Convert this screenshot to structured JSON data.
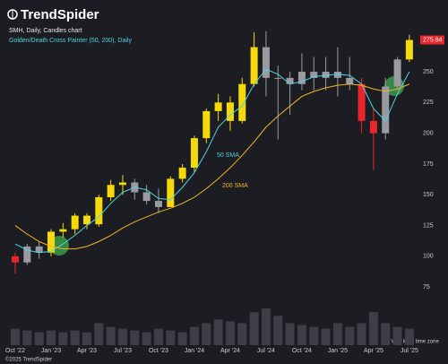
{
  "header": {
    "brand": "TrendSpider"
  },
  "footer": {
    "timezone": "Your local time zone",
    "copyright": "©2025 TrendSpider"
  },
  "chart_data": {
    "type": "candlestick",
    "title": "SMH, Daily, Candles chart",
    "subtitle": "Golden/Death Cross Painter (50, 200), Daily",
    "categories": [
      "Oct '22",
      null,
      null,
      "Jan '23",
      null,
      null,
      "Apr '23",
      null,
      null,
      "Jul '23",
      null,
      null,
      "Oct '23",
      null,
      null,
      "Jan '24",
      null,
      null,
      "Apr '24",
      null,
      null,
      "Jul '24",
      null,
      null,
      "Oct '24",
      null,
      null,
      "Jan '25",
      null,
      null,
      "Apr '25",
      null,
      null,
      "Jul '25"
    ],
    "open": [
      100,
      95,
      108,
      103,
      120,
      122,
      133,
      126,
      148,
      158,
      160,
      152,
      145,
      140,
      163,
      172,
      196,
      218,
      225,
      210,
      240,
      270,
      245,
      245,
      240,
      250,
      245,
      250,
      245,
      240,
      210,
      200,
      238,
      260
    ],
    "high": [
      103,
      110,
      112,
      122,
      127,
      135,
      135,
      150,
      162,
      166,
      163,
      158,
      155,
      165,
      175,
      198,
      220,
      232,
      230,
      245,
      282,
      283,
      255,
      250,
      265,
      262,
      262,
      270,
      262,
      245,
      220,
      245,
      262,
      280
    ],
    "low": [
      86,
      93,
      98,
      100,
      115,
      118,
      122,
      124,
      145,
      150,
      146,
      142,
      135,
      140,
      160,
      168,
      192,
      210,
      202,
      208,
      238,
      230,
      195,
      215,
      235,
      235,
      235,
      230,
      235,
      200,
      170,
      195,
      235,
      258
    ],
    "close": [
      95,
      108,
      103,
      120,
      122,
      133,
      126,
      148,
      158,
      160,
      152,
      145,
      140,
      163,
      172,
      196,
      218,
      225,
      210,
      240,
      270,
      245,
      245,
      240,
      250,
      245,
      250,
      245,
      240,
      210,
      200,
      238,
      260,
      275.84
    ],
    "candle_colors": [
      "#e8262b",
      "#9a9ba0",
      "#9a9ba0",
      "#f5d90a",
      "#f5d90a",
      "#f5d90a",
      "#f5d90a",
      "#f5d90a",
      "#f5d90a",
      "#f5d90a",
      "#9a9ba0",
      "#9a9ba0",
      "#9a9ba0",
      "#f5d90a",
      "#f5d90a",
      "#f5d90a",
      "#f5d90a",
      "#f5d90a",
      "#f5d90a",
      "#f5d90a",
      "#f5d90a",
      "#9a9ba0",
      "#9a9ba0",
      "#9a9ba0",
      "#9a9ba0",
      "#9a9ba0",
      "#9a9ba0",
      "#9a9ba0",
      "#9a9ba0",
      "#e8262b",
      "#e8262b",
      "#9a9ba0",
      "#9a9ba0",
      "#f5d90a"
    ],
    "series": [
      {
        "name": "50 SMA",
        "color": "#4fd3e0",
        "values": [
          110,
          105,
          103,
          104,
          110,
          117,
          125,
          132,
          143,
          152,
          156,
          154,
          147,
          146,
          156,
          168,
          185,
          205,
          215,
          222,
          240,
          252,
          248,
          240,
          242,
          246,
          247,
          248,
          247,
          240,
          220,
          210,
          232,
          250
        ]
      },
      {
        "name": "200 SMA",
        "color": "#f0b429",
        "values": [
          125,
          118,
          112,
          108,
          106,
          106,
          108,
          112,
          117,
          123,
          128,
          132,
          136,
          139,
          143,
          148,
          155,
          163,
          172,
          182,
          193,
          205,
          214,
          222,
          230,
          234,
          237,
          239,
          240,
          239,
          236,
          234,
          236,
          240
        ]
      }
    ],
    "volume": [
      9,
      8,
      7,
      8,
      7,
      8,
      7,
      12,
      10,
      9,
      8,
      7,
      9,
      8,
      7,
      10,
      12,
      14,
      13,
      12,
      18,
      20,
      16,
      12,
      11,
      10,
      9,
      12,
      10,
      12,
      18,
      12,
      10,
      9
    ],
    "volume_lim": [
      0,
      22
    ],
    "ylim": [
      70,
      285
    ],
    "yticks": [
      75,
      100,
      125,
      150,
      175,
      200,
      225,
      250,
      275
    ],
    "grid": false,
    "price_tag_color": "#e8262b"
  }
}
